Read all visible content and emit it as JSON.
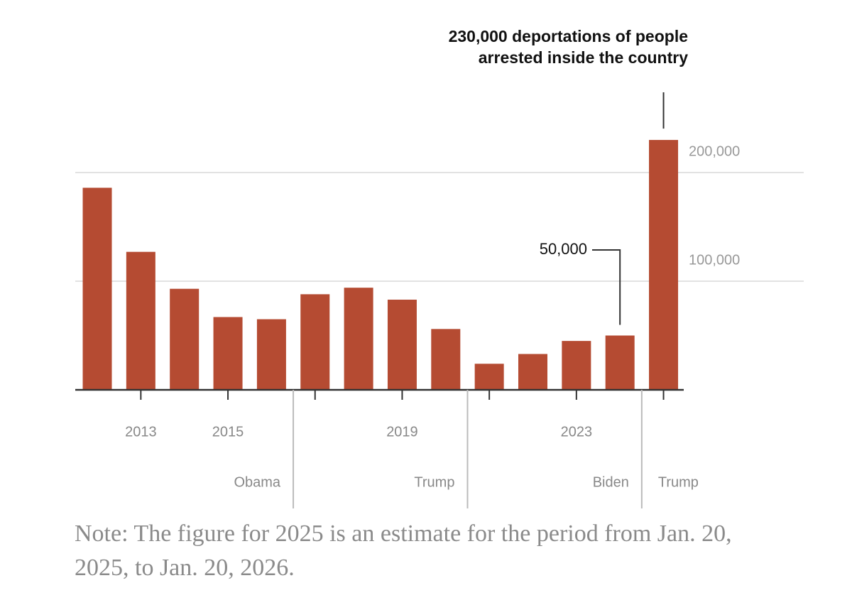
{
  "chart_data": {
    "type": "bar",
    "categories": [
      null,
      "2013",
      null,
      "2015",
      null,
      null,
      null,
      "2019",
      null,
      null,
      null,
      "2023",
      null,
      null
    ],
    "values": [
      186000,
      127000,
      93000,
      67000,
      65000,
      88000,
      94000,
      83000,
      56000,
      24000,
      33000,
      45000,
      50000,
      230000
    ],
    "color": "#b54b32",
    "ylim": [
      0,
      250000
    ],
    "yticks": [
      {
        "value": 100000,
        "label": "100,000"
      },
      {
        "value": 200000,
        "label": "200,000"
      }
    ],
    "grid": true,
    "periods": [
      "Obama",
      "Trump",
      "Biden",
      "Trump"
    ],
    "annotations": [
      {
        "text": [
          "230,000 deportations of people",
          "arrested inside the country"
        ],
        "value": 230000
      },
      {
        "text": "50,000",
        "value": 50000
      }
    ],
    "note": "Note: The figure for 2025 is an estimate for the period from Jan. 20, 2025, to Jan. 20, 2026."
  }
}
